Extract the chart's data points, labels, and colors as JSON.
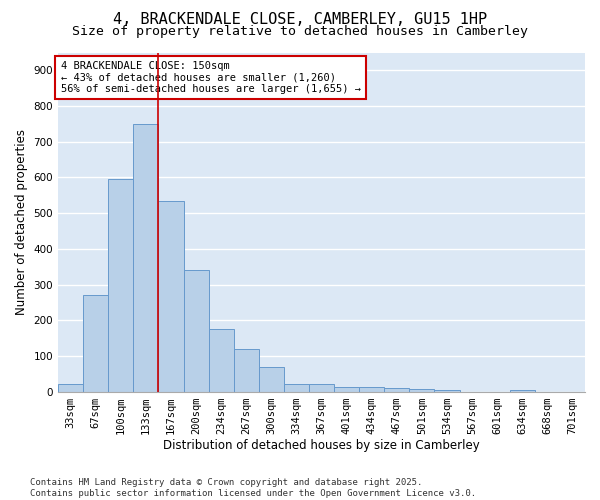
{
  "title": "4, BRACKENDALE CLOSE, CAMBERLEY, GU15 1HP",
  "subtitle": "Size of property relative to detached houses in Camberley",
  "xlabel": "Distribution of detached houses by size in Camberley",
  "ylabel": "Number of detached properties",
  "categories": [
    "33sqm",
    "67sqm",
    "100sqm",
    "133sqm",
    "167sqm",
    "200sqm",
    "234sqm",
    "267sqm",
    "300sqm",
    "334sqm",
    "367sqm",
    "401sqm",
    "434sqm",
    "467sqm",
    "501sqm",
    "534sqm",
    "567sqm",
    "601sqm",
    "634sqm",
    "668sqm",
    "701sqm"
  ],
  "values": [
    20,
    270,
    595,
    750,
    535,
    340,
    175,
    120,
    68,
    22,
    20,
    12,
    12,
    10,
    8,
    5,
    0,
    0,
    5,
    0,
    0
  ],
  "bar_color": "#b8d0e8",
  "bar_edge_color": "#6699cc",
  "background_color": "#dce8f5",
  "grid_color": "#ffffff",
  "vline_x_index": 3,
  "vline_color": "#cc0000",
  "annotation_text": "4 BRACKENDALE CLOSE: 150sqm\n← 43% of detached houses are smaller (1,260)\n56% of semi-detached houses are larger (1,655) →",
  "annotation_box_color": "#ffffff",
  "annotation_box_edge": "#cc0000",
  "ylim": [
    0,
    950
  ],
  "yticks": [
    0,
    100,
    200,
    300,
    400,
    500,
    600,
    700,
    800,
    900
  ],
  "footer": "Contains HM Land Registry data © Crown copyright and database right 2025.\nContains public sector information licensed under the Open Government Licence v3.0.",
  "title_fontsize": 11,
  "subtitle_fontsize": 9.5,
  "label_fontsize": 8.5,
  "tick_fontsize": 7.5,
  "footer_fontsize": 6.5,
  "annotation_fontsize": 7.5
}
